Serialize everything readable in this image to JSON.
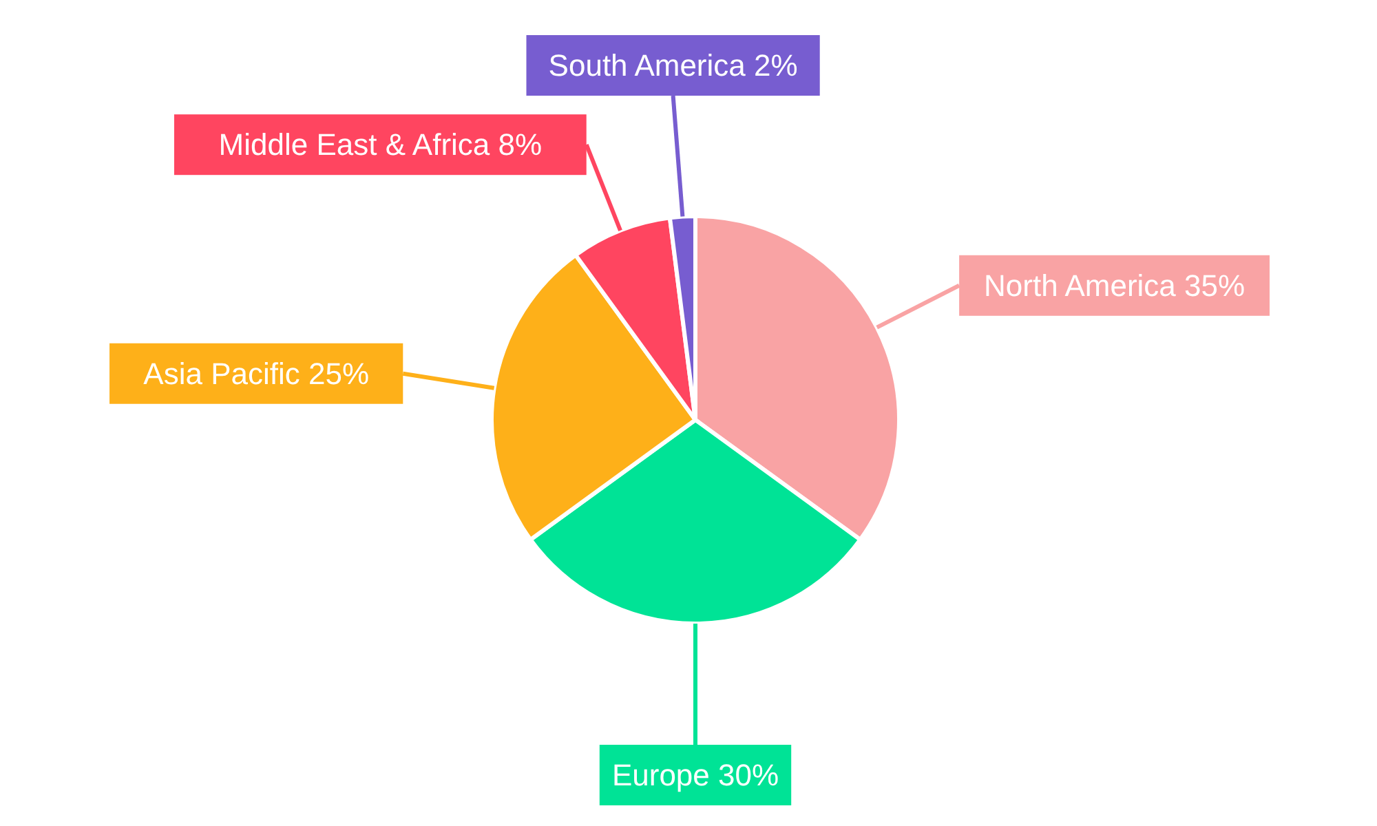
{
  "chart_data": {
    "type": "pie",
    "categories": [
      "North America",
      "Europe",
      "Asia Pacific",
      "Middle East & Africa",
      "South America"
    ],
    "values": [
      35,
      30,
      25,
      8,
      2
    ],
    "value_labels": [
      "35%",
      "30%",
      "25%",
      "8%",
      "2%"
    ],
    "colors": [
      "#f9a3a4",
      "#00e396",
      "#feb019",
      "#ff4560",
      "#775dd0"
    ]
  }
}
